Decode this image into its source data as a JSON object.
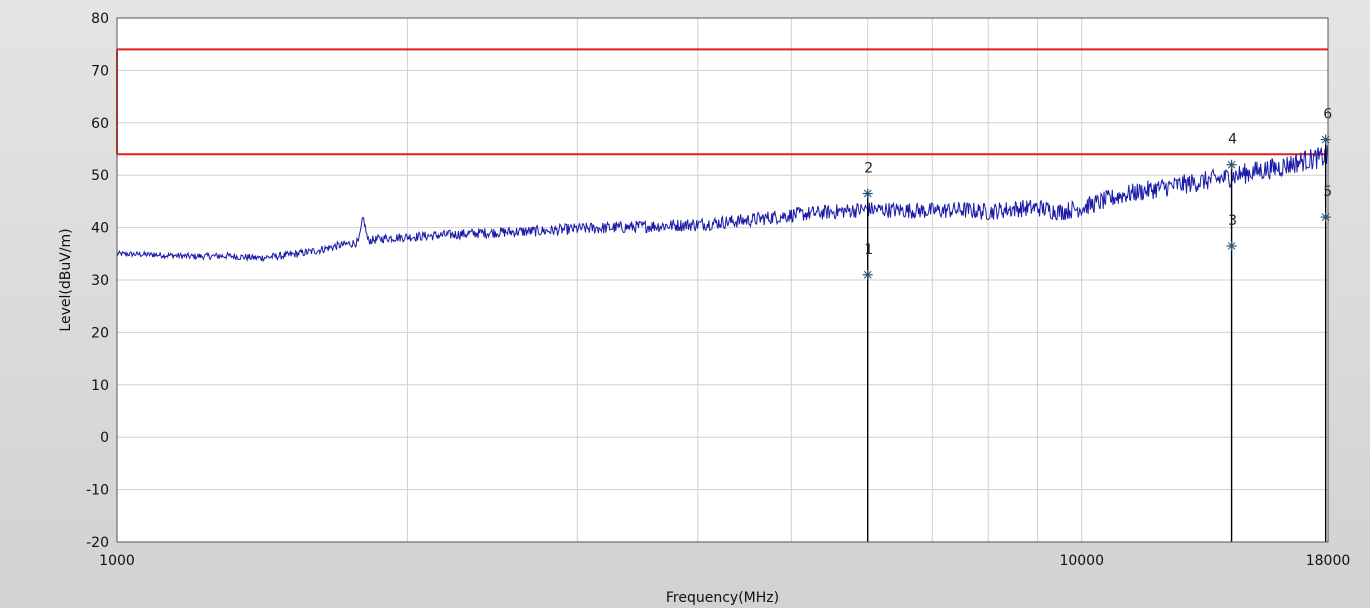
{
  "chart_data": {
    "type": "line",
    "xlabel": "Frequency(MHz)",
    "ylabel": "Level(dBuV/m)",
    "x_scale": "log",
    "xlim": [
      1000,
      18000
    ],
    "ylim": [
      -20,
      80
    ],
    "x_tick_labels": [
      {
        "value": 1000,
        "label": "1000"
      },
      {
        "value": 10000,
        "label": "10000"
      },
      {
        "value": 18000,
        "label": "18000"
      }
    ],
    "y_ticks": [
      -20,
      -10,
      0,
      10,
      20,
      30,
      40,
      50,
      60,
      70,
      80
    ],
    "grid": true,
    "colors": {
      "plot_bg": "#ffffff",
      "grid": "#d0d0d0",
      "trace": "#1a1aa8",
      "limit": "#e02020",
      "marker": "#000000"
    },
    "series": [
      {
        "color": "#1a1aa8",
        "points": [
          [
            1000,
            35.0
          ],
          [
            1100,
            34.8
          ],
          [
            1200,
            34.5
          ],
          [
            1300,
            34.6
          ],
          [
            1400,
            34.2
          ],
          [
            1500,
            34.7
          ],
          [
            1600,
            35.5
          ],
          [
            1700,
            36.6
          ],
          [
            1780,
            37.2
          ],
          [
            1800,
            42.0
          ],
          [
            1820,
            37.5
          ],
          [
            1900,
            38.0
          ],
          [
            2000,
            38.2
          ],
          [
            2200,
            38.6
          ],
          [
            2400,
            39.0
          ],
          [
            2600,
            39.2
          ],
          [
            2800,
            39.4
          ],
          [
            3000,
            39.8
          ],
          [
            3300,
            40.0
          ],
          [
            3600,
            40.3
          ],
          [
            4000,
            40.6
          ],
          [
            4500,
            41.4
          ],
          [
            5000,
            42.4
          ],
          [
            5500,
            43.0
          ],
          [
            6000,
            43.5
          ],
          [
            6500,
            43.3
          ],
          [
            7000,
            43.2
          ],
          [
            7500,
            43.4
          ],
          [
            8000,
            43.0
          ],
          [
            8500,
            43.6
          ],
          [
            9000,
            43.8
          ],
          [
            9500,
            43.0
          ],
          [
            10000,
            43.8
          ],
          [
            10500,
            45.0
          ],
          [
            11000,
            46.2
          ],
          [
            12000,
            47.5
          ],
          [
            13000,
            48.5
          ],
          [
            14000,
            49.4
          ],
          [
            15000,
            50.6
          ],
          [
            16000,
            51.5
          ],
          [
            17000,
            52.8
          ],
          [
            18000,
            53.6
          ]
        ]
      }
    ],
    "limit_lines": [
      {
        "color": "#e02020",
        "points": [
          [
            1000,
            74
          ],
          [
            18000,
            74
          ]
        ]
      },
      {
        "color": "#e02020",
        "points": [
          [
            1000,
            54
          ],
          [
            18000,
            54
          ]
        ]
      },
      {
        "color": "#e02020",
        "points": [
          [
            1000,
            54
          ],
          [
            1000,
            74
          ]
        ]
      }
    ],
    "markers": [
      {
        "label": "1",
        "freq": 6000,
        "level": 31.0
      },
      {
        "label": "2",
        "freq": 6000,
        "level": 46.5
      },
      {
        "label": "3",
        "freq": 14300,
        "level": 36.5
      },
      {
        "label": "4",
        "freq": 14300,
        "level": 52.0
      },
      {
        "label": "5",
        "freq": 17900,
        "level": 42.0
      },
      {
        "label": "6",
        "freq": 17900,
        "level": 56.8
      }
    ]
  }
}
